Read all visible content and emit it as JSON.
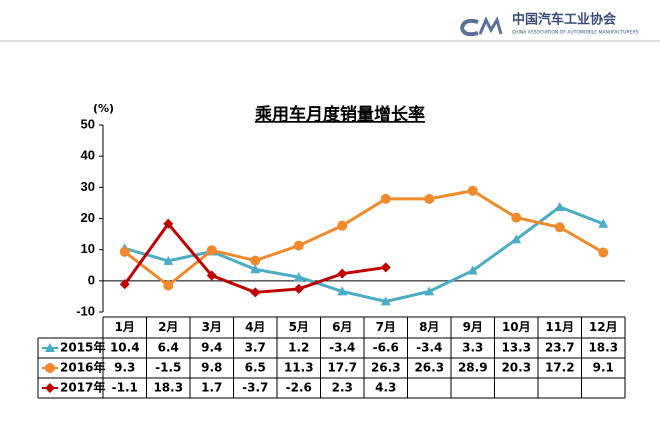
{
  "header": {
    "org_name": "中国汽车工业协会",
    "org_name_en": "CHINA ASSOCIATION OF AUTOMOBILE MANUFACTURERS"
  },
  "chart_data": {
    "type": "line",
    "title": "乘用车月度销量增长率",
    "y_label": "(%)",
    "categories": [
      "1月",
      "2月",
      "3月",
      "4月",
      "5月",
      "6月",
      "7月",
      "8月",
      "9月",
      "10月",
      "11月",
      "12月"
    ],
    "series": [
      {
        "name": "2015年",
        "color": "#4bacc6",
        "marker": "triangle",
        "values": [
          10.4,
          6.4,
          9.4,
          3.7,
          1.2,
          -3.4,
          -6.6,
          -3.4,
          3.3,
          13.3,
          23.7,
          18.3
        ]
      },
      {
        "name": "2016年",
        "color": "#f08a2c",
        "marker": "circle",
        "values": [
          9.3,
          -1.5,
          9.8,
          6.5,
          11.3,
          17.7,
          26.3,
          26.3,
          28.9,
          20.3,
          17.2,
          9.1
        ]
      },
      {
        "name": "2017年",
        "color": "#c00000",
        "marker": "diamond",
        "values": [
          -1.1,
          18.3,
          1.7,
          -3.7,
          -2.6,
          2.3,
          4.3,
          null,
          null,
          null,
          null,
          null
        ]
      }
    ],
    "ylim": [
      -10,
      50
    ],
    "yticks": [
      -10,
      0,
      10,
      20,
      30,
      40,
      50
    ]
  }
}
